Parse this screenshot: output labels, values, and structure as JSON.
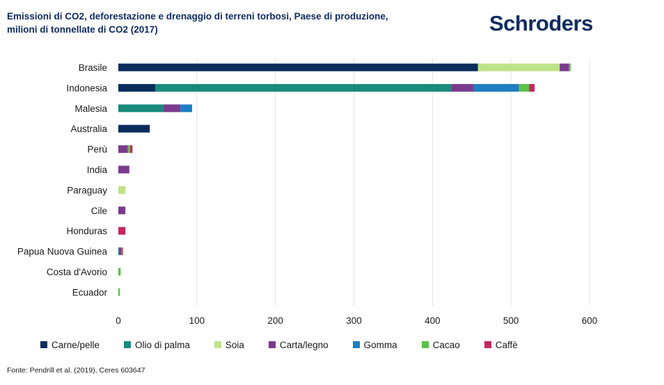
{
  "header": {
    "title_line1": "Emissioni di CO2, deforestazione e drenaggio di terreni torbosi, Paese di produzione,",
    "title_line2": "milioni di tonnellate di CO2 (2017)",
    "logo": "Schroders"
  },
  "footer": {
    "source": "Fonte: Pendrill et al. (2019), Ceres 603647"
  },
  "colors": {
    "Carne/pelle": "#0b2d5c",
    "Olio di palma": "#1a8a7c",
    "Soia": "#bfe38a",
    "Carta/legno": "#7a3b8e",
    "Gomma": "#1f7ec2",
    "Cacao": "#5cc24a",
    "Caffè": "#c8245f",
    "axis_text": "#1a1a1a",
    "gridline": "#e3e3e3"
  },
  "chart_data": {
    "type": "bar",
    "orientation": "horizontal",
    "stacked": true,
    "title": "Emissioni di CO2, deforestazione e drenaggio di terreni torbosi, Paese di produzione, milioni di tonnellate di CO2 (2017)",
    "xlabel": "",
    "ylabel": "",
    "xlim": [
      0,
      600
    ],
    "xticks": [
      0,
      100,
      200,
      300,
      400,
      500,
      600
    ],
    "grid": "vertical",
    "legend_position": "bottom",
    "categories": [
      "Brasile",
      "Indonesia",
      "Malesia",
      "Australia",
      "Perù",
      "India",
      "Paraguay",
      "Cile",
      "Honduras",
      "Papua Nuova Guinea",
      "Costa d'Avorio",
      "Ecuador"
    ],
    "series": [
      {
        "name": "Carne/pelle",
        "values": [
          458,
          47,
          0,
          40,
          0,
          0,
          0,
          0,
          0,
          0,
          0,
          0
        ]
      },
      {
        "name": "Olio di palma",
        "values": [
          0,
          377,
          57,
          0,
          0,
          0,
          0,
          0,
          0,
          1,
          0,
          0
        ]
      },
      {
        "name": "Soia",
        "values": [
          104,
          0,
          0,
          0,
          0,
          0,
          9,
          0,
          0,
          0,
          0,
          0
        ]
      },
      {
        "name": "Carta/legno",
        "values": [
          12,
          28,
          22,
          0,
          12,
          14,
          0,
          9,
          0,
          3,
          0,
          0
        ]
      },
      {
        "name": "Gomma",
        "values": [
          0,
          58,
          15,
          0,
          0,
          0,
          0,
          0,
          0,
          0,
          0,
          0
        ]
      },
      {
        "name": "Cacao",
        "values": [
          2,
          13,
          0,
          0,
          3,
          0,
          0,
          0,
          0,
          1,
          3,
          2
        ]
      },
      {
        "name": "Caffè",
        "values": [
          0,
          7,
          0,
          0,
          3,
          0,
          0,
          0,
          9,
          1,
          0,
          0
        ]
      }
    ]
  }
}
